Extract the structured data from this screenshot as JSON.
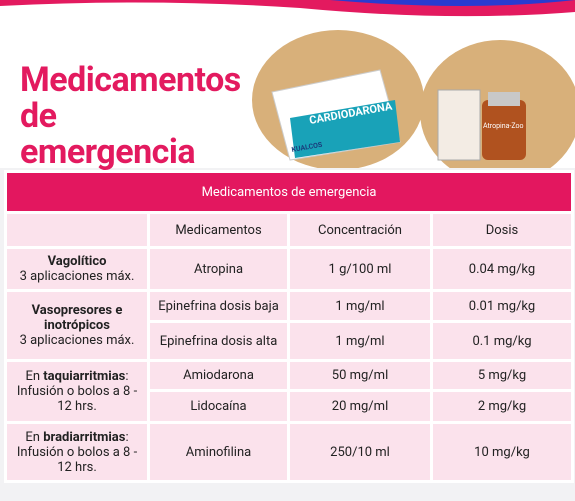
{
  "header": {
    "title": "Medicamentos de emergencia",
    "products": [
      "CARDIODARONA",
      "KUALCOS",
      "Atropina-Zoo"
    ]
  },
  "table": {
    "caption": "Medicamentos de emergencia",
    "columns": [
      "Medicamentos",
      "Concentración",
      "Dosis"
    ],
    "groups": [
      {
        "label": [
          {
            "text": "Vagolítico",
            "bold": true
          }
        ],
        "note": "3 aplicaciones máx.",
        "rows": [
          [
            "Atropina",
            "1 g/100 ml",
            "0.04 mg/kg"
          ]
        ]
      },
      {
        "label": [
          {
            "text": "Vasopresores e inotrópicos",
            "bold": true
          }
        ],
        "note": "3 aplicaciones máx.",
        "rows": [
          [
            "Epinefrina dosis baja",
            "1 mg/ml",
            "0.01 mg/kg"
          ],
          [
            "Epinefrina dosis alta",
            "1 mg/ml",
            "0.1 mg/kg"
          ]
        ]
      },
      {
        "label": [
          {
            "text": "En ",
            "bold": false
          },
          {
            "text": "taquiarritmias",
            "bold": true
          },
          {
            "text": ":",
            "bold": false
          }
        ],
        "note": "Infusión o bolos a 8 - 12 hrs.",
        "rows": [
          [
            "Amiodarona",
            "50 mg/ml",
            "5 mg/kg"
          ],
          [
            "Lidocaína",
            "20 mg/ml",
            "2 mg/kg"
          ]
        ]
      },
      {
        "label": [
          {
            "text": "En ",
            "bold": false
          },
          {
            "text": "bradiarritmias",
            "bold": true
          },
          {
            "text": ":",
            "bold": false
          }
        ],
        "note": "Infusión o bolos a 8 - 12 hrs.",
        "rows": [
          [
            "Aminofilina",
            "250/10 ml",
            "10 mg/kg"
          ]
        ]
      }
    ]
  }
}
